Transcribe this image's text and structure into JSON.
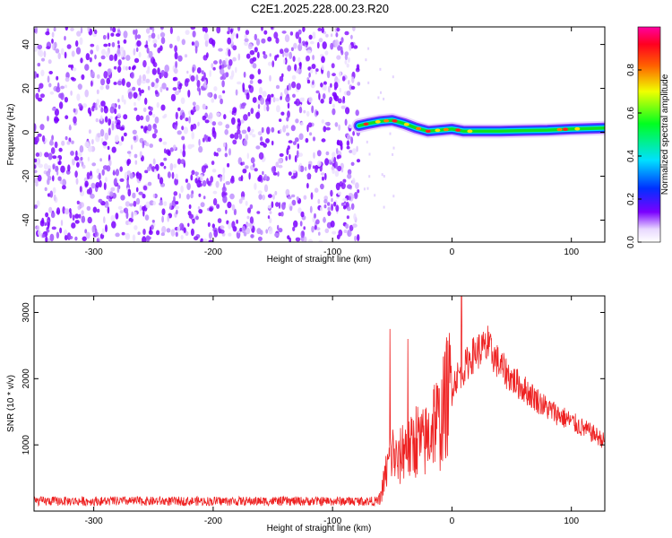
{
  "figure": {
    "title": "C2E1.2025.228.00.23.R20"
  },
  "chart_data": [
    {
      "type": "heatmap",
      "xlabel": "Height of straight line (km)",
      "ylabel": "Frequency (Hz)",
      "xlim": [
        -350,
        128
      ],
      "ylim": [
        -50,
        48
      ],
      "xticks": [
        -300,
        -200,
        -100,
        0,
        100
      ],
      "yticks": [
        -40,
        -20,
        0,
        20,
        40
      ],
      "noise_region_x": [
        -350,
        -78
      ],
      "signal_track": {
        "x": [
          -78,
          -70,
          -60,
          -50,
          -40,
          -30,
          -20,
          -10,
          0,
          10,
          20,
          40,
          60,
          80,
          100,
          128
        ],
        "y": [
          3,
          4,
          5,
          5.5,
          4,
          2,
          0.5,
          1,
          1.5,
          0.5,
          0.5,
          0.5,
          0.8,
          1,
          1.5,
          2
        ]
      },
      "colorbar": {
        "label": "Normalized spectral amplitude",
        "range": [
          0,
          1
        ],
        "ticks": [
          "0.0",
          "0.2",
          "0.4",
          "0.6",
          "0.8"
        ],
        "tick_values": [
          0,
          0.2,
          0.4,
          0.6,
          0.8
        ],
        "colormap": "rainbow (white-purple-blue-cyan-green-yellow-red-magenta)"
      }
    },
    {
      "type": "line",
      "xlabel": "Height of straight line (km)",
      "ylabel": "SNR (10 * v/v)",
      "xlim": [
        -350,
        128
      ],
      "ylim": [
        0,
        3250
      ],
      "xticks": [
        -300,
        -200,
        -100,
        0,
        100
      ],
      "yticks": [
        1000,
        2000,
        3000
      ],
      "color": "#ee2222",
      "envelope_x": [
        -350,
        -200,
        -100,
        -62,
        -60,
        -55,
        -50,
        -45,
        -40,
        -35,
        -30,
        -25,
        -20,
        -15,
        -10,
        -5,
        0,
        5,
        10,
        15,
        20,
        25,
        30,
        35,
        40,
        50,
        60,
        70,
        80,
        90,
        100,
        110,
        120,
        128
      ],
      "envelope_y": [
        150,
        150,
        150,
        150,
        200,
        600,
        900,
        700,
        1000,
        900,
        1100,
        1000,
        1100,
        1400,
        1300,
        1700,
        1900,
        2050,
        2150,
        2300,
        2400,
        2450,
        2450,
        2350,
        2200,
        2000,
        1850,
        1700,
        1550,
        1450,
        1350,
        1250,
        1150,
        1050
      ],
      "spikes": [
        {
          "x": -52,
          "y": 2750
        },
        {
          "x": -37,
          "y": 2600
        },
        {
          "x": 8,
          "y": 3250
        },
        {
          "x": 30,
          "y": 2800
        }
      ]
    }
  ]
}
